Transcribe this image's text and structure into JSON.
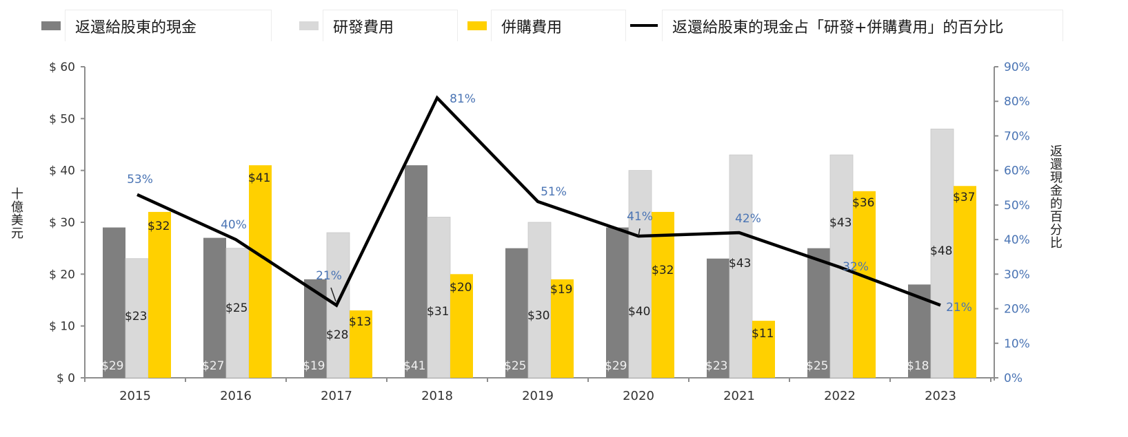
{
  "colors": {
    "cash": "#7f7f7f",
    "rnd": "#d9d9d9",
    "mna": "#ffd000",
    "line": "#000000",
    "pct_text": "#4a74b4",
    "axis": "#8c8c8c"
  },
  "legend": {
    "cash": "返還給股東的現金",
    "rnd": "研發費用",
    "mna": "併購費用",
    "line": "返還給股東的現金占「研發+併購費用」的百分比"
  },
  "chart_data": {
    "type": "bar",
    "title": "",
    "categories": [
      "2015",
      "2016",
      "2017",
      "2018",
      "2019",
      "2020",
      "2021",
      "2022",
      "2023"
    ],
    "series": [
      {
        "name": "返還給股東的現金",
        "axis": "left",
        "values": [
          29,
          27,
          19,
          41,
          25,
          29,
          23,
          25,
          18
        ],
        "labels": [
          "$29",
          "$27",
          "$19",
          "$41",
          "$25",
          "$29",
          "$23",
          "$25",
          "$18"
        ]
      },
      {
        "name": "研發費用",
        "axis": "left",
        "values": [
          23,
          25,
          28,
          31,
          30,
          40,
          43,
          43,
          48
        ],
        "labels": [
          "$23",
          "$25",
          "$28",
          "$31",
          "$30",
          "$40",
          "$43",
          "$43",
          "$48"
        ]
      },
      {
        "name": "併購費用",
        "axis": "left",
        "values": [
          32,
          41,
          13,
          20,
          19,
          32,
          11,
          36,
          37
        ],
        "labels": [
          "$32",
          "$41",
          "$13",
          "$20",
          "$19",
          "$32",
          "$11",
          "$36",
          "$37"
        ]
      },
      {
        "name": "返還給股東的現金占「研發+併購費用」的百分比",
        "type": "line",
        "axis": "right",
        "values": [
          53,
          40,
          21,
          81,
          51,
          41,
          42,
          32,
          21
        ],
        "labels": [
          "53%",
          "40%",
          "21%",
          "81%",
          "51%",
          "41%",
          "42%",
          "32%",
          "21%"
        ]
      }
    ],
    "ylabel": "十億美元",
    "y2label": "返還現金的百分比",
    "ylim": [
      0,
      60
    ],
    "y2lim": [
      0,
      90
    ],
    "yticks": [
      "$ 0",
      "$ 10",
      "$ 20",
      "$ 30",
      "$ 40",
      "$ 50",
      "$ 60"
    ],
    "y2ticks": [
      "0%",
      "10%",
      "20%",
      "30%",
      "40%",
      "50%",
      "60%",
      "70%",
      "80%",
      "90%"
    ],
    "grid": false,
    "legend_position": "top"
  }
}
